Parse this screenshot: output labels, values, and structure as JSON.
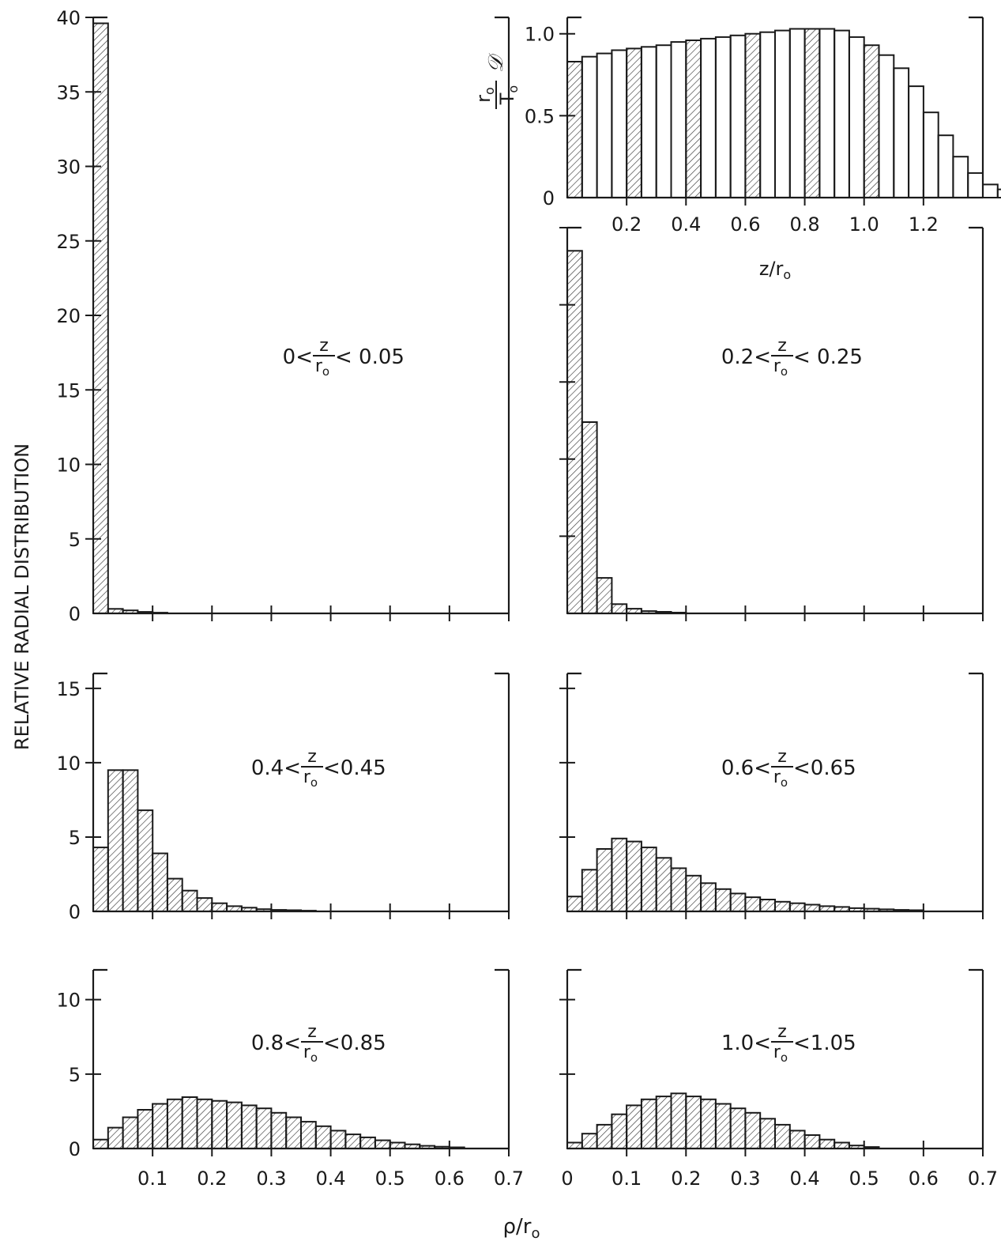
{
  "labels": {
    "ylabel": "RELATIVE RADIAL DISTRIBUTION",
    "xlabel": "ρ/r",
    "xlabel_sub": "o"
  },
  "colors": {
    "ink": "#1a1a1a",
    "hatch": "#3a3a3a",
    "paper": "#ffffff"
  },
  "chart_data": [
    {
      "type": "bar",
      "id": "inset",
      "xlabel_main": "z/r",
      "xlabel_sub": "o",
      "ylabel_top": "r",
      "ylabel_top_sub": "o",
      "ylabel_bottom": "T",
      "ylabel_bottom_sub": "o",
      "ylabel_tail": "𝒟",
      "xlim": [
        0,
        1.4
      ],
      "ylim": [
        0,
        1.1
      ],
      "xticks": [
        0.2,
        0.4,
        0.6,
        0.8,
        1.0,
        1.2
      ],
      "xtick_labels": [
        "0.2",
        "0.4",
        "0.6",
        "0.8",
        "1.0",
        "1.2"
      ],
      "yticks": [
        0,
        0.5,
        1.0
      ],
      "ytick_labels": [
        "0",
        "0.5",
        "1.0"
      ],
      "bin_width": 0.05,
      "values": [
        0.83,
        0.86,
        0.88,
        0.9,
        0.91,
        0.92,
        0.93,
        0.95,
        0.96,
        0.97,
        0.98,
        0.99,
        1.0,
        1.01,
        1.02,
        1.03,
        1.03,
        1.03,
        1.02,
        0.98,
        0.93,
        0.87,
        0.79,
        0.68,
        0.52,
        0.38,
        0.25,
        0.15,
        0.08,
        0.05,
        0.04,
        0.03,
        0.02
      ],
      "hatched_bins": [
        0,
        4,
        8,
        12,
        16,
        20
      ]
    },
    {
      "type": "bar",
      "id": "p1",
      "annotation_lo": "0<",
      "annotation_num": "z",
      "annotation_den": "r",
      "annotation_den_sub": "o",
      "annotation_hi": "< 0.05",
      "xlim": [
        0,
        0.7
      ],
      "ylim": [
        0,
        40
      ],
      "yticks": [
        0,
        5,
        10,
        15,
        20,
        25,
        30,
        35,
        40
      ],
      "ytick_labels": [
        "0",
        "5",
        "10",
        "15",
        "20",
        "25",
        "30",
        "35",
        "40"
      ],
      "bin_width": 0.025,
      "values": [
        39.6,
        0.3,
        0.2,
        0.1,
        0.05
      ]
    },
    {
      "type": "bar",
      "id": "p2",
      "annotation_lo": "0.2<",
      "annotation_num": "z",
      "annotation_den": "r",
      "annotation_den_sub": "o",
      "annotation_hi": "< 0.25",
      "xlim": [
        0,
        0.7
      ],
      "ylim": [
        0,
        25
      ],
      "bin_width": 0.025,
      "values": [
        23.5,
        12.4,
        2.3,
        0.6,
        0.3,
        0.15,
        0.1,
        0.05
      ]
    },
    {
      "type": "bar",
      "id": "p3",
      "annotation_lo": "0.4<",
      "annotation_num": "z",
      "annotation_den": "r",
      "annotation_den_sub": "o",
      "annotation_hi": "<0.45",
      "xlim": [
        0,
        0.7
      ],
      "ylim": [
        0,
        16
      ],
      "yticks": [
        0,
        5,
        10,
        15
      ],
      "ytick_labels": [
        "0",
        "5",
        "10",
        "15"
      ],
      "bin_width": 0.025,
      "values": [
        4.3,
        9.5,
        9.5,
        6.8,
        3.9,
        2.2,
        1.4,
        0.9,
        0.55,
        0.35,
        0.25,
        0.15,
        0.1,
        0.08,
        0.05
      ]
    },
    {
      "type": "bar",
      "id": "p4",
      "annotation_lo": "0.6<",
      "annotation_num": "z",
      "annotation_den": "r",
      "annotation_den_sub": "o",
      "annotation_hi": "<0.65",
      "xlim": [
        0,
        0.7
      ],
      "ylim": [
        0,
        16
      ],
      "bin_width": 0.025,
      "values": [
        1.0,
        2.8,
        4.2,
        4.9,
        4.7,
        4.3,
        3.6,
        2.9,
        2.4,
        1.9,
        1.5,
        1.2,
        0.95,
        0.8,
        0.65,
        0.55,
        0.45,
        0.35,
        0.3,
        0.22,
        0.18,
        0.14,
        0.1,
        0.08
      ]
    },
    {
      "type": "bar",
      "id": "p5",
      "annotation_lo": "0.8<",
      "annotation_num": "z",
      "annotation_den": "r",
      "annotation_den_sub": "o",
      "annotation_hi": "<0.85",
      "xlim": [
        0,
        0.7
      ],
      "ylim": [
        0,
        12
      ],
      "yticks": [
        0,
        5,
        10
      ],
      "ytick_labels": [
        "0",
        "5",
        "10"
      ],
      "xticks": [
        0.1,
        0.2,
        0.3,
        0.4,
        0.5,
        0.6,
        0.7
      ],
      "xtick_labels": [
        "0.1",
        "0.2",
        "0.3",
        "0.4",
        "0.5",
        "0.6",
        "0.7"
      ],
      "bin_width": 0.025,
      "values": [
        0.6,
        1.4,
        2.1,
        2.6,
        3.0,
        3.3,
        3.45,
        3.3,
        3.2,
        3.1,
        2.9,
        2.7,
        2.4,
        2.1,
        1.8,
        1.5,
        1.2,
        0.95,
        0.75,
        0.55,
        0.4,
        0.28,
        0.18,
        0.12,
        0.08
      ]
    },
    {
      "type": "bar",
      "id": "p6",
      "annotation_lo": "1.0<",
      "annotation_num": "z",
      "annotation_den": "r",
      "annotation_den_sub": "o",
      "annotation_hi": "<1.05",
      "xlim": [
        0,
        0.7
      ],
      "ylim": [
        0,
        12
      ],
      "xticks": [
        0,
        0.1,
        0.2,
        0.3,
        0.4,
        0.5,
        0.6,
        0.7
      ],
      "xtick_labels": [
        "0",
        "0.1",
        "0.2",
        "0.3",
        "0.4",
        "0.5",
        "0.6",
        "0.7"
      ],
      "bin_width": 0.025,
      "values": [
        0.4,
        1.0,
        1.6,
        2.3,
        2.9,
        3.3,
        3.5,
        3.7,
        3.5,
        3.3,
        3.0,
        2.7,
        2.4,
        2.0,
        1.6,
        1.2,
        0.9,
        0.6,
        0.4,
        0.2,
        0.1
      ]
    }
  ]
}
